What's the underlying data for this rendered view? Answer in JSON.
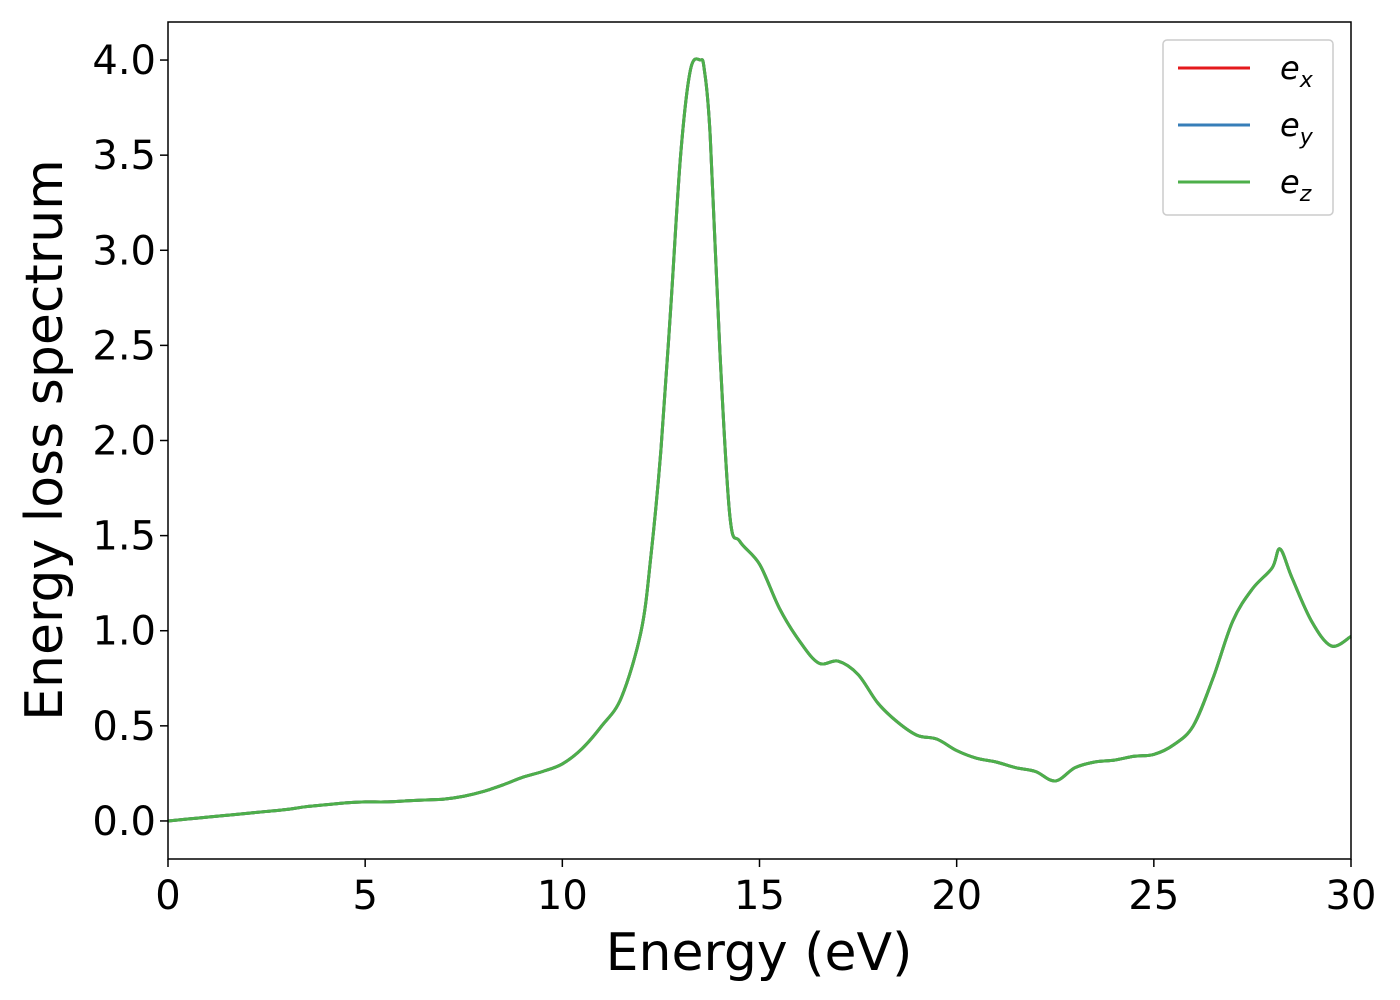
{
  "chart_data": {
    "type": "line",
    "xlabel": "Energy (eV)",
    "ylabel": "Energy loss spectrum",
    "xlim": [
      0,
      30
    ],
    "ylim": [
      -0.2,
      4.2
    ],
    "grid": false,
    "legend_position": "top-right",
    "x_ticks": [
      0,
      5,
      10,
      15,
      20,
      25,
      30
    ],
    "x_tick_labels": [
      "0",
      "5",
      "10",
      "15",
      "20",
      "25",
      "30"
    ],
    "y_ticks": [
      0.0,
      0.5,
      1.0,
      1.5,
      2.0,
      2.5,
      3.0,
      3.5,
      4.0
    ],
    "y_tick_labels": [
      "0.0",
      "0.5",
      "1.0",
      "1.5",
      "2.0",
      "2.5",
      "3.0",
      "3.5",
      "4.0"
    ],
    "x": [
      0,
      0.5,
      1,
      1.5,
      2,
      2.5,
      3,
      3.5,
      4,
      4.5,
      5,
      5.5,
      6,
      6.5,
      7,
      7.5,
      8,
      8.5,
      9,
      9.5,
      10,
      10.5,
      11,
      11.5,
      12,
      12.25,
      12.5,
      12.75,
      13,
      13.25,
      13.5,
      13.6,
      13.75,
      14,
      14.25,
      14.5,
      15,
      15.5,
      16,
      16.5,
      17,
      17.5,
      18,
      18.5,
      19,
      19.5,
      20,
      20.5,
      21,
      21.5,
      22,
      22.5,
      23,
      23.5,
      24,
      24.5,
      25,
      25.5,
      26,
      26.5,
      27,
      27.5,
      28,
      28.2,
      28.5,
      29,
      29.5,
      30
    ],
    "series": [
      {
        "name_main": "e",
        "name_sub": "x",
        "color": "#e41a1c",
        "values": [
          0.0,
          0.01,
          0.02,
          0.03,
          0.04,
          0.05,
          0.06,
          0.075,
          0.085,
          0.095,
          0.1,
          0.1,
          0.105,
          0.11,
          0.115,
          0.13,
          0.155,
          0.19,
          0.23,
          0.26,
          0.3,
          0.38,
          0.5,
          0.65,
          1.0,
          1.4,
          1.95,
          2.7,
          3.5,
          3.95,
          4.0,
          3.95,
          3.6,
          2.45,
          1.6,
          1.47,
          1.35,
          1.12,
          0.95,
          0.83,
          0.84,
          0.77,
          0.62,
          0.52,
          0.45,
          0.43,
          0.37,
          0.33,
          0.31,
          0.28,
          0.26,
          0.21,
          0.28,
          0.31,
          0.32,
          0.34,
          0.35,
          0.4,
          0.5,
          0.75,
          1.05,
          1.22,
          1.33,
          1.43,
          1.28,
          1.05,
          0.92,
          0.97
        ]
      },
      {
        "name_main": "e",
        "name_sub": "y",
        "color": "#377eb8",
        "values": [
          0.0,
          0.01,
          0.02,
          0.03,
          0.04,
          0.05,
          0.06,
          0.075,
          0.085,
          0.095,
          0.1,
          0.1,
          0.105,
          0.11,
          0.115,
          0.13,
          0.155,
          0.19,
          0.23,
          0.26,
          0.3,
          0.38,
          0.5,
          0.65,
          1.0,
          1.4,
          1.95,
          2.7,
          3.5,
          3.95,
          4.0,
          3.95,
          3.6,
          2.45,
          1.6,
          1.47,
          1.35,
          1.12,
          0.95,
          0.83,
          0.84,
          0.77,
          0.62,
          0.52,
          0.45,
          0.43,
          0.37,
          0.33,
          0.31,
          0.28,
          0.26,
          0.21,
          0.28,
          0.31,
          0.32,
          0.34,
          0.35,
          0.4,
          0.5,
          0.75,
          1.05,
          1.22,
          1.33,
          1.43,
          1.28,
          1.05,
          0.92,
          0.97
        ]
      },
      {
        "name_main": "e",
        "name_sub": "z",
        "color": "#4daf4a",
        "values": [
          0.0,
          0.01,
          0.02,
          0.03,
          0.04,
          0.05,
          0.06,
          0.075,
          0.085,
          0.095,
          0.1,
          0.1,
          0.105,
          0.11,
          0.115,
          0.13,
          0.155,
          0.19,
          0.23,
          0.26,
          0.3,
          0.38,
          0.5,
          0.65,
          1.0,
          1.4,
          1.95,
          2.7,
          3.5,
          3.95,
          4.0,
          3.95,
          3.6,
          2.45,
          1.6,
          1.47,
          1.35,
          1.12,
          0.95,
          0.83,
          0.84,
          0.77,
          0.62,
          0.52,
          0.45,
          0.43,
          0.37,
          0.33,
          0.31,
          0.28,
          0.26,
          0.21,
          0.28,
          0.31,
          0.32,
          0.34,
          0.35,
          0.4,
          0.5,
          0.75,
          1.05,
          1.22,
          1.33,
          1.43,
          1.28,
          1.05,
          0.92,
          0.97
        ]
      }
    ]
  }
}
